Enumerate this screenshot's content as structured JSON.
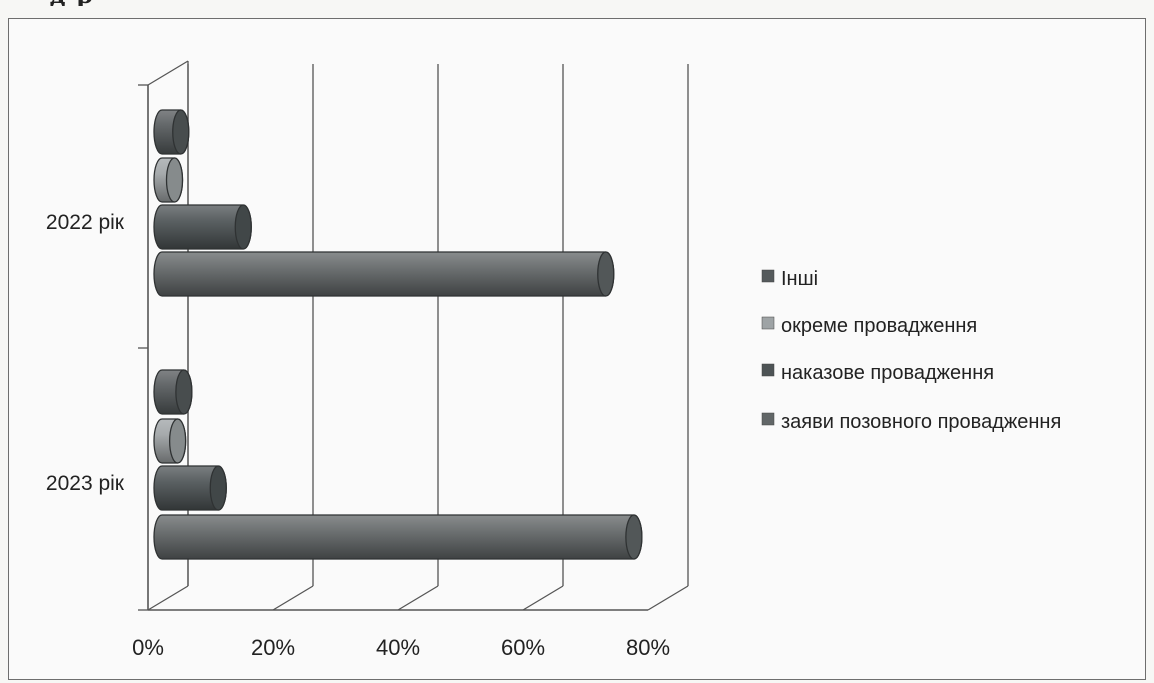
{
  "chart_data": {
    "type": "bar",
    "orientation": "horizontal",
    "style": "3d-cylinder",
    "categories": [
      "2022 рік",
      "2023 рік"
    ],
    "series": [
      {
        "name": "Інші",
        "values": [
          3,
          3.5
        ],
        "color": "#555a5c"
      },
      {
        "name": "окреме провадження",
        "values": [
          2,
          2.5
        ],
        "color": "#9ea3a5"
      },
      {
        "name": "наказове провадження",
        "values": [
          13,
          9
        ],
        "color": "#4d5355"
      },
      {
        "name": "заяви позовного провадження",
        "values": [
          71,
          75.5
        ],
        "color": "#616667"
      }
    ],
    "xlim": [
      0,
      80
    ],
    "xticks": [
      "0%",
      "20%",
      "40%",
      "60%",
      "80%"
    ],
    "grid": true,
    "legend_position": "right"
  }
}
